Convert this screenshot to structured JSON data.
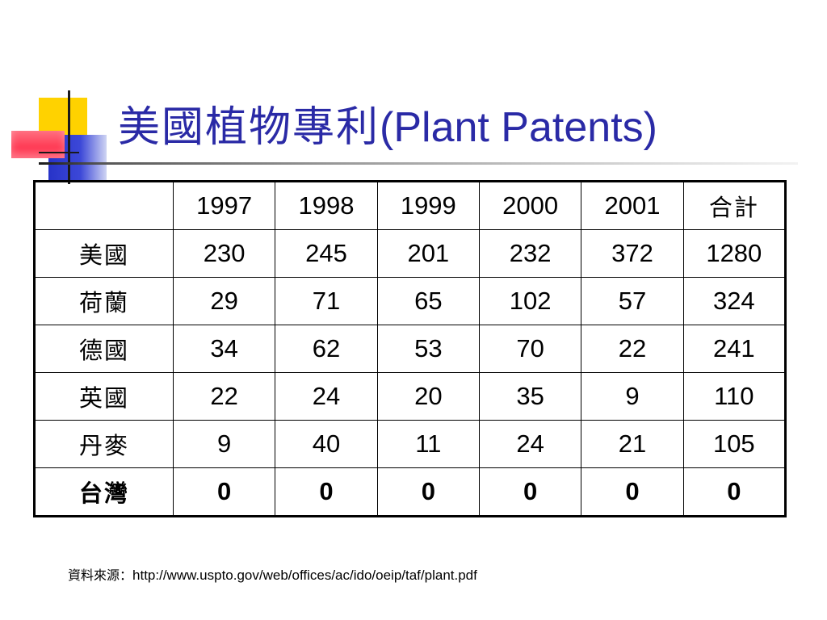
{
  "title": {
    "zh": "美國植物專利",
    "en": "(Plant Patents)"
  },
  "table": {
    "header": [
      "",
      "1997",
      "1998",
      "1999",
      "2000",
      "2001",
      "合計"
    ],
    "rows": [
      {
        "label": "美國",
        "values": [
          "230",
          "245",
          "201",
          "232",
          "372",
          "1280"
        ]
      },
      {
        "label": "荷蘭",
        "values": [
          "29",
          "71",
          "65",
          "102",
          "57",
          "324"
        ]
      },
      {
        "label": "德國",
        "values": [
          "34",
          "62",
          "53",
          "70",
          "22",
          "241"
        ]
      },
      {
        "label": "英國",
        "values": [
          "22",
          "24",
          "20",
          "35",
          "9",
          "110"
        ]
      },
      {
        "label": "丹麥",
        "values": [
          "9",
          "40",
          "11",
          "24",
          "21",
          "105"
        ]
      },
      {
        "label": "台灣",
        "values": [
          "0",
          "0",
          "0",
          "0",
          "0",
          "0"
        ]
      }
    ]
  },
  "source": {
    "label": "資料來源：",
    "url": "http://www.uspto.gov/web/offices/ac/ido/oeip/taf/plant.pdf"
  },
  "colors": {
    "title": "#2a2aa6",
    "accent_yellow": "#ffd200",
    "accent_blue": "#2733c8",
    "accent_red": "#ff3a54"
  }
}
